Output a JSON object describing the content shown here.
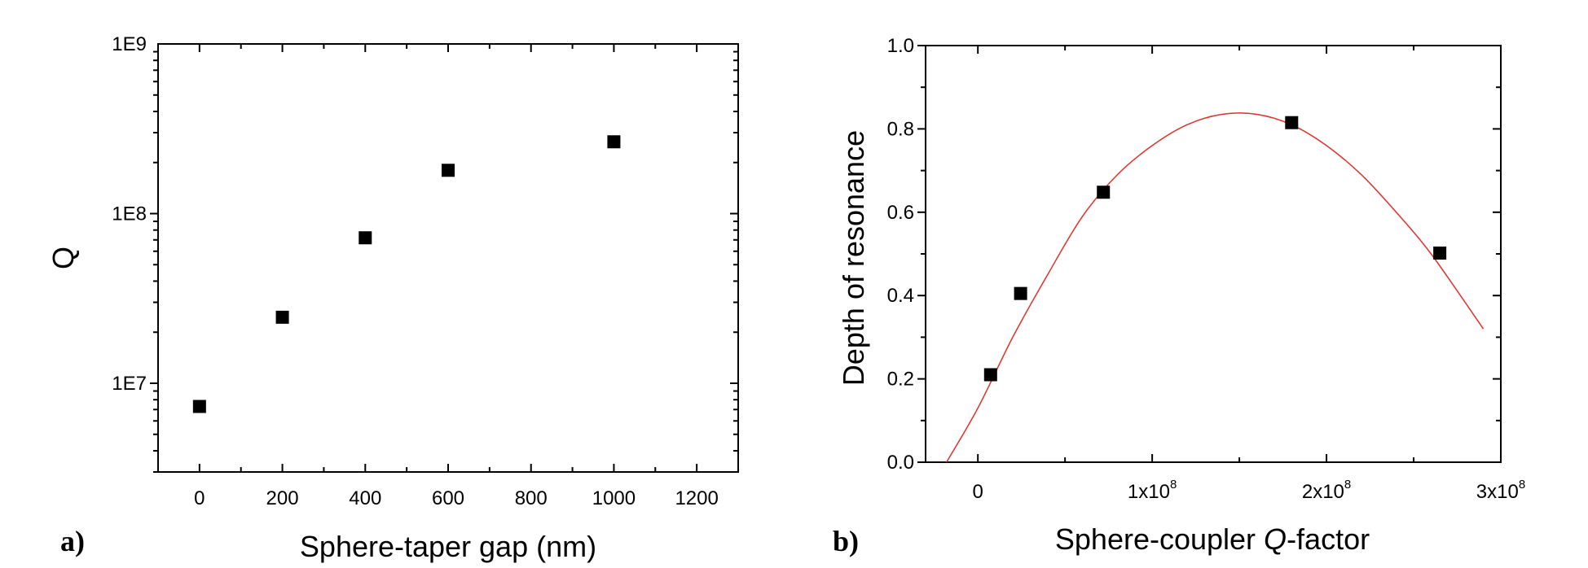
{
  "chart_data": [
    {
      "panel": "a)",
      "type": "scatter",
      "xlabel": "Sphere-taper gap (nm)",
      "ylabel": "Q",
      "xlim": [
        -100,
        1300
      ],
      "ylim": [
        3000000,
        1000000000
      ],
      "y_scale": "log",
      "x_ticks": [
        0,
        200,
        400,
        600,
        800,
        1000,
        1200
      ],
      "x_tick_labels": [
        "0",
        "200",
        "400",
        "600",
        "800",
        "1000",
        "1200"
      ],
      "y_ticks": [
        10000000,
        100000000,
        1000000000
      ],
      "y_tick_labels": [
        "1E7",
        "1E8",
        "1E9"
      ],
      "series": [
        {
          "points": [
            {
              "x": 0,
              "y": 7300000
            },
            {
              "x": 200,
              "y": 24500000
            },
            {
              "x": 400,
              "y": 72000000
            },
            {
              "x": 600,
              "y": 180000000
            },
            {
              "x": 1000,
              "y": 265000000
            }
          ],
          "marker": "square",
          "color": "#000000"
        }
      ]
    },
    {
      "panel": "b)",
      "type": "scatter",
      "xlabel_parts": [
        "Sphere-coupler ",
        "Q",
        "-factor"
      ],
      "ylabel": "Depth of resonance",
      "xlim": [
        -30000000,
        300000000
      ],
      "ylim": [
        0,
        1.0
      ],
      "x_ticks": [
        0,
        100000000,
        200000000,
        300000000
      ],
      "x_tick_labels": [
        {
          "base": "0",
          "exp": ""
        },
        {
          "base": "1x10",
          "exp": "8"
        },
        {
          "base": "2x10",
          "exp": "8"
        },
        {
          "base": "3x10",
          "exp": "8"
        }
      ],
      "y_ticks": [
        0,
        0.2,
        0.4,
        0.6,
        0.8,
        1.0
      ],
      "y_tick_labels": [
        "0.0",
        "0.2",
        "0.4",
        "0.6",
        "0.8",
        "1.0"
      ],
      "series": [
        {
          "points": [
            {
              "x": 7300000,
              "y": 0.21
            },
            {
              "x": 24500000,
              "y": 0.405
            },
            {
              "x": 72000000,
              "y": 0.648
            },
            {
              "x": 180000000,
              "y": 0.815
            },
            {
              "x": 265000000,
              "y": 0.502
            }
          ],
          "marker": "square",
          "color": "#000000"
        },
        {
          "type": "line",
          "color": "#e0302a",
          "points": [
            {
              "x": -18000000,
              "y": 0.0
            },
            {
              "x": 0,
              "y": 0.13
            },
            {
              "x": 20000000,
              "y": 0.3
            },
            {
              "x": 40000000,
              "y": 0.45
            },
            {
              "x": 60000000,
              "y": 0.59
            },
            {
              "x": 80000000,
              "y": 0.69
            },
            {
              "x": 100000000,
              "y": 0.76
            },
            {
              "x": 120000000,
              "y": 0.81
            },
            {
              "x": 140000000,
              "y": 0.835
            },
            {
              "x": 160000000,
              "y": 0.835
            },
            {
              "x": 180000000,
              "y": 0.81
            },
            {
              "x": 200000000,
              "y": 0.76
            },
            {
              "x": 220000000,
              "y": 0.69
            },
            {
              "x": 240000000,
              "y": 0.6
            },
            {
              "x": 260000000,
              "y": 0.5
            },
            {
              "x": 290000000,
              "y": 0.32
            }
          ]
        }
      ]
    }
  ]
}
